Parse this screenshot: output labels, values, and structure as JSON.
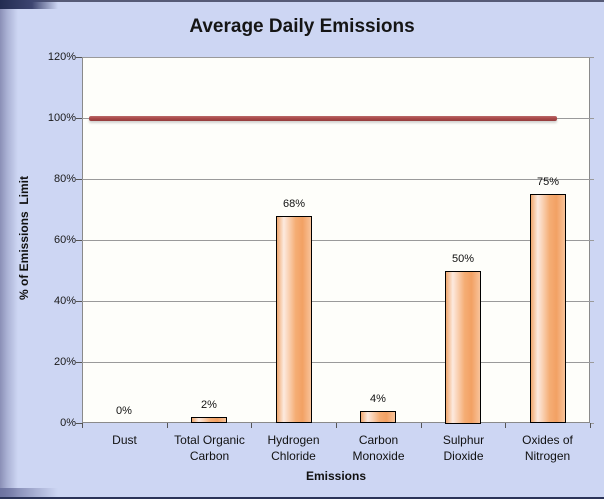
{
  "window": {
    "background_color": "#cdd6f3",
    "accent_border_color": "#2a3358"
  },
  "chart_data": {
    "type": "bar",
    "title": "Average Daily Emissions",
    "xlabel": "Emissions",
    "ylabel": "% of Emissions  Limit",
    "categories": [
      "Dust",
      "Total Organic Carbon",
      "Hydrogen Chloride",
      "Carbon Monoxide",
      "Sulphur Dioxide",
      "Oxides of Nitrogen"
    ],
    "category_lines": [
      [
        "Dust"
      ],
      [
        "Total Organic",
        "Carbon"
      ],
      [
        "Hydrogen",
        "Chloride"
      ],
      [
        "Carbon",
        "Monoxide"
      ],
      [
        "Sulphur",
        "Dioxide"
      ],
      [
        "Oxides of",
        "Nitrogen"
      ]
    ],
    "values": [
      0,
      2,
      68,
      4,
      50,
      75
    ],
    "data_labels": [
      "0%",
      "2%",
      "68%",
      "4%",
      "50%",
      "75%"
    ],
    "ylim": [
      0,
      120
    ],
    "ytick_step": 20,
    "ytick_labels": [
      "0%",
      "20%",
      "40%",
      "60%",
      "80%",
      "100%",
      "120%"
    ],
    "grid": true,
    "legend": "none",
    "limit_line": {
      "value": 100,
      "color_top": "#b96a6a",
      "color_mid": "#ab4a4a",
      "color_bottom": "#943d3d"
    },
    "plot_background": "#fefefa",
    "gridline_color": "#9a9a9a",
    "bar_border_color": "#000000",
    "bar_colors": {
      "edge": "#f0a86f",
      "highlight": "#fdeadf",
      "mid": "#f5ad74",
      "dark": "#f2a164",
      "right": "#f8c39a"
    }
  }
}
